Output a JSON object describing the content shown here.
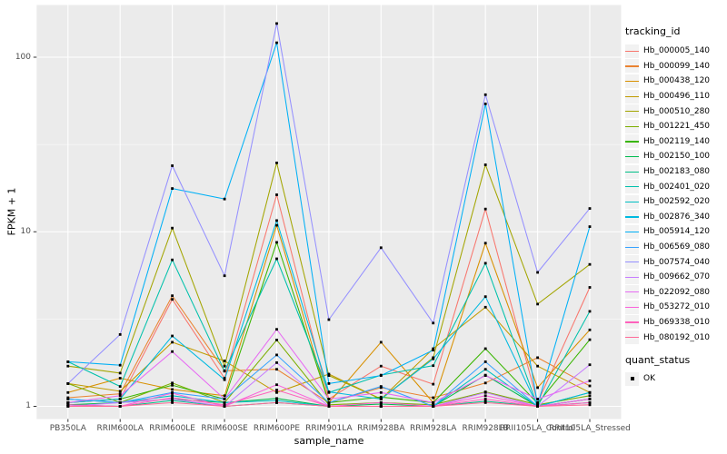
{
  "figure": {
    "background": "#FFFFFF",
    "panel_background": "#EBEBEB",
    "gridline_color": "#FFFFFF",
    "axis_text_color": "#4D4D4D",
    "tick_color": "#333333",
    "point_color": "#000000"
  },
  "chart_data": {
    "type": "line",
    "title": "",
    "xlabel": "sample_name",
    "ylabel": "FPKM + 1",
    "y_scale": "log10",
    "y_tick_labels": [
      "1",
      "10",
      "100"
    ],
    "y_major_breaks": [
      1,
      10,
      100
    ],
    "y_minor_breaks": [
      3.162,
      31.62
    ],
    "ylim": [
      0.93,
      175
    ],
    "grid": true,
    "legend_position": "right",
    "legend_title": "tracking_id",
    "point_legend_title": "quant_status",
    "point_legend_label": "OK",
    "categories": [
      "PB350LA",
      "RRIM600LA",
      "RRIM600LE",
      "RRIM600SE",
      "RRIM600PE",
      "RRIM901LA",
      "RRIM928BA",
      "RRIM928LA",
      "RRIM928LB",
      "RRII105LA_Control",
      "RRII105LA_Stressed"
    ],
    "series": [
      {
        "name": "Hb_000005_140",
        "color": "#F8766D",
        "values": [
          1.05,
          1.1,
          4.1,
          1.45,
          16.3,
          1.1,
          1.7,
          1.34,
          13.5,
          1.05,
          4.8
        ]
      },
      {
        "name": "Hb_000099_140",
        "color": "#EA8331",
        "values": [
          1.12,
          1.18,
          4.3,
          1.6,
          1.63,
          1.05,
          1.28,
          1.12,
          1.36,
          1.9,
          1.31
        ]
      },
      {
        "name": "Hb_000438_120",
        "color": "#D89000",
        "values": [
          1.2,
          1.45,
          1.25,
          1.15,
          10.9,
          1.05,
          2.33,
          1.05,
          8.6,
          1.28,
          2.74
        ]
      },
      {
        "name": "Hb_000496_110",
        "color": "#C09B00",
        "values": [
          1.35,
          1.22,
          2.33,
          1.82,
          1.2,
          1.53,
          1.1,
          2.14,
          3.7,
          1.7,
          1.2
        ]
      },
      {
        "name": "Hb_000510_280",
        "color": "#A3A500",
        "values": [
          1.7,
          1.55,
          10.5,
          1.7,
          24.8,
          1.5,
          1.1,
          1.9,
          24.2,
          3.85,
          6.5
        ]
      },
      {
        "name": "Hb_001221_450",
        "color": "#7CAE00",
        "values": [
          1.35,
          1.05,
          1.36,
          1.05,
          2.4,
          1.02,
          1.05,
          1.02,
          1.21,
          1.02,
          1.15
        ]
      },
      {
        "name": "Hb_002119_140",
        "color": "#39B600",
        "values": [
          1.05,
          1.1,
          1.32,
          1.1,
          8.7,
          1.05,
          1.13,
          1.05,
          2.14,
          1.04,
          2.41
        ]
      },
      {
        "name": "Hb_002150_100",
        "color": "#00BB4E",
        "values": [
          1.02,
          1.05,
          1.1,
          1.05,
          1.11,
          1.0,
          1.03,
          1.0,
          1.51,
          1.0,
          1.2
        ]
      },
      {
        "name": "Hb_002183_080",
        "color": "#00C087",
        "values": [
          1.02,
          1.0,
          1.08,
          1.0,
          1.05,
          1.0,
          1.0,
          1.0,
          1.07,
          1.0,
          1.1
        ]
      },
      {
        "name": "Hb_002401_020",
        "color": "#00C1AB",
        "values": [
          1.8,
          1.3,
          6.9,
          1.59,
          7.0,
          1.2,
          1.51,
          1.71,
          6.6,
          1.0,
          3.5
        ]
      },
      {
        "name": "Hb_002592_020",
        "color": "#00BFC4",
        "values": [
          1.1,
          1.05,
          1.15,
          1.05,
          1.08,
          1.0,
          1.0,
          1.0,
          1.63,
          1.0,
          1.05
        ]
      },
      {
        "name": "Hb_002876_340",
        "color": "#00BAE0",
        "values": [
          1.05,
          1.1,
          2.53,
          1.42,
          11.6,
          1.21,
          1.1,
          1.87,
          4.25,
          1.0,
          1.2
        ]
      },
      {
        "name": "Hb_005914_120",
        "color": "#00B0F6",
        "values": [
          1.8,
          1.72,
          17.7,
          15.4,
          121,
          1.35,
          1.5,
          2.1,
          54.0,
          1.02,
          10.7
        ]
      },
      {
        "name": "Hb_006569_080",
        "color": "#35A2FF",
        "values": [
          1.1,
          1.05,
          1.2,
          1.1,
          1.97,
          1.05,
          1.3,
          1.0,
          1.8,
          1.0,
          1.1
        ]
      },
      {
        "name": "Hb_007574_040",
        "color": "#9590FF",
        "values": [
          1.35,
          2.58,
          23.9,
          5.6,
          156,
          3.14,
          8.1,
          3.0,
          61.0,
          5.85,
          13.6
        ]
      },
      {
        "name": "Hb_009662_070",
        "color": "#C77CFF",
        "values": [
          1.0,
          1.05,
          1.1,
          1.0,
          1.78,
          1.0,
          1.0,
          1.0,
          1.2,
          1.0,
          1.73
        ]
      },
      {
        "name": "Hb_022092_080",
        "color": "#E76BF3",
        "values": [
          1.05,
          1.15,
          2.06,
          1.1,
          2.76,
          1.1,
          1.2,
          1.05,
          1.5,
          1.1,
          1.4
        ]
      },
      {
        "name": "Hb_053272_010",
        "color": "#FA62DB",
        "values": [
          1.0,
          1.0,
          1.19,
          1.0,
          1.33,
          1.0,
          1.05,
          1.0,
          1.15,
          1.0,
          1.1
        ]
      },
      {
        "name": "Hb_069338_010",
        "color": "#FF62BC",
        "values": [
          1.02,
          1.0,
          1.12,
          1.02,
          1.24,
          1.0,
          1.0,
          1.0,
          1.1,
          1.0,
          1.05
        ]
      },
      {
        "name": "Hb_080192_010",
        "color": "#FF6A98",
        "values": [
          1.0,
          1.0,
          1.05,
          1.0,
          1.05,
          1.0,
          1.0,
          1.0,
          1.05,
          1.0,
          1.02
        ]
      }
    ]
  }
}
